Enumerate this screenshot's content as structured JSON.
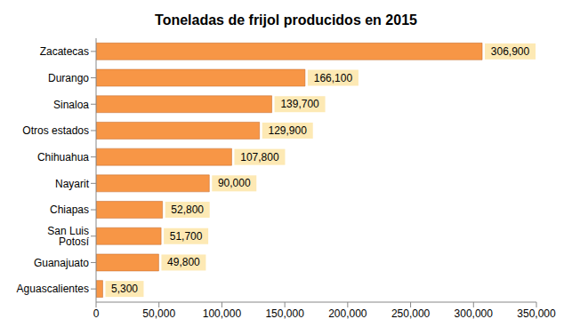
{
  "chart_data": {
    "type": "bar",
    "title": "Toneladas de frijol producidos en 2015",
    "orientation": "horizontal",
    "categories": [
      "Zacatecas",
      "Durango",
      "Sinaloa",
      "Otros estados",
      "Chihuahua",
      "Nayarit",
      "Chiapas",
      "San Luis Potosí",
      "Guanajuato",
      "Aguascalientes"
    ],
    "values": [
      306900,
      166100,
      139700,
      129900,
      107800,
      90000,
      52800,
      51700,
      49800,
      5300
    ],
    "value_labels": [
      "306,900",
      "166,100",
      "139,700",
      "129,900",
      "107,800",
      "90,000",
      "52,800",
      "51,700",
      "49,800",
      "5,300"
    ],
    "color": "#f79646",
    "xlim": [
      0,
      350000
    ],
    "xticks": [
      0,
      {
        "value": 50000,
        "label": "50,000"
      },
      {
        "value": 100000,
        "label": "100,000"
      },
      {
        "value": 150000,
        "label": "150,000"
      },
      {
        "value": 200000,
        "label": "200,000"
      },
      {
        "value": 250000,
        "label": "250,000"
      },
      {
        "value": 300000,
        "label": "300,000"
      },
      {
        "value": 350000,
        "label": "350,000"
      }
    ],
    "grid": false,
    "data_labels": true
  }
}
